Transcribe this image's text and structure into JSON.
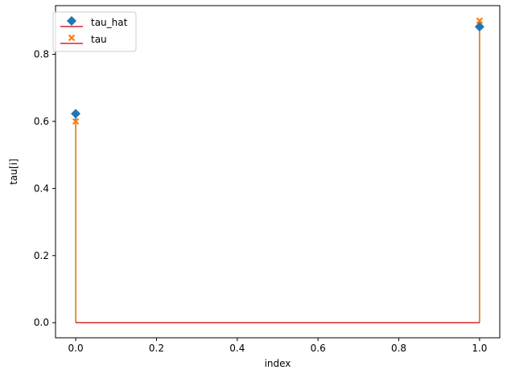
{
  "chart_data": {
    "type": "stem",
    "xlabel": "index",
    "ylabel": "tau[i]",
    "xlim": [
      -0.05,
      1.05
    ],
    "ylim": [
      -0.045,
      0.945
    ],
    "xticks": [
      0.0,
      0.2,
      0.4,
      0.6,
      0.8,
      1.0
    ],
    "xtick_labels": [
      "0.0",
      "0.2",
      "0.4",
      "0.6",
      "0.8",
      "1.0"
    ],
    "yticks": [
      0.0,
      0.2,
      0.4,
      0.6,
      0.8
    ],
    "ytick_labels": [
      "0.0",
      "0.2",
      "0.4",
      "0.6",
      "0.8"
    ],
    "baseline": 0.0,
    "baseline_color": "#d62728",
    "grid": false,
    "legend_position": "top-left",
    "series": [
      {
        "name": "tau_hat",
        "x": [
          0,
          1
        ],
        "values": [
          0.623,
          0.882
        ],
        "marker": "diamond",
        "color": "#1f77b4",
        "stem_color": "#1f77b4"
      },
      {
        "name": "tau",
        "x": [
          0,
          1
        ],
        "values": [
          0.6,
          0.9
        ],
        "marker": "x",
        "color": "#ff7f0e",
        "stem_color": "#ff7f0e"
      }
    ]
  }
}
